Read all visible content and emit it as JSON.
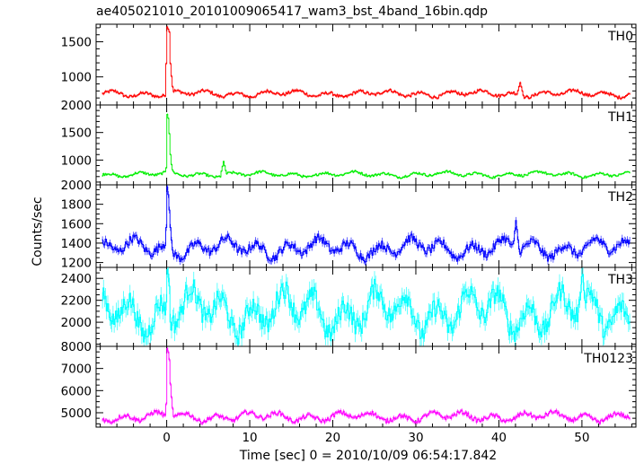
{
  "chart_data": {
    "type": "line",
    "title": "ae405021010_20101009065417_wam3_bst_4band_16bin.qdp",
    "xlabel": "Time [sec] 0 = 2010/10/09 06:54:17.842",
    "ylabel": "Counts/sec",
    "xlim": [
      -8.5,
      56.5
    ],
    "x_ticks": [
      0,
      10,
      20,
      30,
      40,
      50
    ],
    "x_minor_step": 2,
    "grid": false,
    "panels": [
      {
        "name": "TH0",
        "color": "#ff0000",
        "ylim": [
          600,
          1750
        ],
        "y_ticks": [
          1000,
          1500
        ],
        "y_minor_step": 100,
        "baseline": 760,
        "noise": 35,
        "burst": [
          {
            "x": -0.1,
            "y": 1190
          },
          {
            "x": 0.0,
            "y": 1710
          },
          {
            "x": 0.12,
            "y": 1680
          },
          {
            "x": 0.25,
            "y": 1640
          },
          {
            "x": 0.4,
            "y": 1190
          },
          {
            "x": 0.55,
            "y": 1010
          },
          {
            "x": 0.7,
            "y": 860
          }
        ],
        "features": [
          {
            "x": 42.5,
            "y": 920
          }
        ]
      },
      {
        "name": "TH1",
        "color": "#00ee00",
        "ylim": [
          550,
          2000
        ],
        "y_ticks": [
          1000,
          1500,
          2000
        ],
        "y_minor_step": 100,
        "baseline": 740,
        "noise": 35,
        "burst": [
          {
            "x": -0.1,
            "y": 860
          },
          {
            "x": 0.0,
            "y": 1830
          },
          {
            "x": 0.12,
            "y": 1760
          },
          {
            "x": 0.25,
            "y": 1480
          },
          {
            "x": 0.4,
            "y": 1100
          },
          {
            "x": 0.55,
            "y": 920
          },
          {
            "x": 0.7,
            "y": 820
          }
        ],
        "features": [
          {
            "x": 6.8,
            "y": 980
          }
        ]
      },
      {
        "name": "TH2",
        "color": "#0000ff",
        "ylim": [
          1150,
          2000
        ],
        "y_ticks": [
          1200,
          1400,
          1600,
          1800,
          2000
        ],
        "y_minor_step": 50,
        "baseline": 1350,
        "noise": 70,
        "burst": [
          {
            "x": -0.1,
            "y": 1560
          },
          {
            "x": 0.0,
            "y": 1980
          },
          {
            "x": 0.12,
            "y": 1900
          },
          {
            "x": 0.25,
            "y": 1740
          },
          {
            "x": 0.4,
            "y": 1560
          },
          {
            "x": 0.55,
            "y": 1430
          }
        ],
        "features": [
          {
            "x": 42.0,
            "y": 1640
          }
        ]
      },
      {
        "name": "TH3",
        "color": "#00ffff",
        "ylim": [
          1780,
          2500
        ],
        "y_ticks": [
          2000,
          2200,
          2400
        ],
        "y_minor_step": 50,
        "baseline": 2100,
        "noise": 150,
        "burst": [
          {
            "x": 0.0,
            "y": 2480
          },
          {
            "x": 0.12,
            "y": 2440
          },
          {
            "x": 0.25,
            "y": 2330
          }
        ],
        "features": [
          {
            "x": 50.0,
            "y": 2500
          }
        ]
      },
      {
        "name": "TH0123",
        "color": "#ff00ff",
        "ylim": [
          4350,
          8000
        ],
        "y_ticks": [
          5000,
          6000,
          7000,
          8000
        ],
        "y_minor_step": 250,
        "baseline": 4820,
        "noise": 160,
        "burst": [
          {
            "x": -0.1,
            "y": 5400
          },
          {
            "x": 0.0,
            "y": 7900
          },
          {
            "x": 0.12,
            "y": 7750
          },
          {
            "x": 0.25,
            "y": 7400
          },
          {
            "x": 0.4,
            "y": 6300
          },
          {
            "x": 0.55,
            "y": 5700
          },
          {
            "x": 0.7,
            "y": 5200
          }
        ],
        "features": []
      }
    ]
  }
}
